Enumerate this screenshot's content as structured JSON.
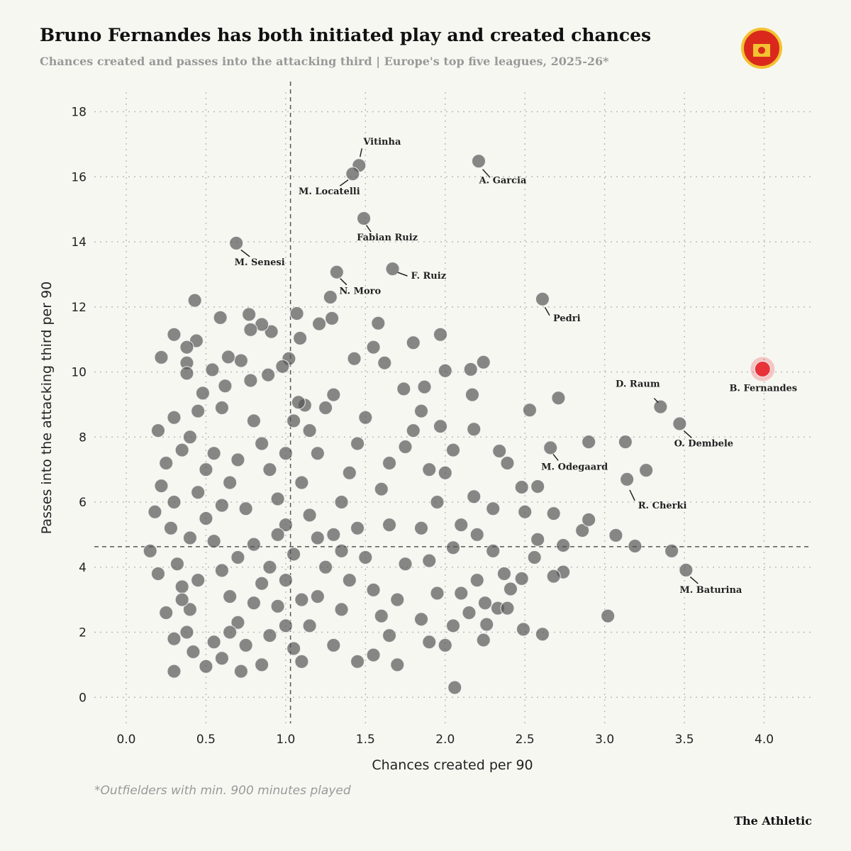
{
  "title": "Bruno Fernandes has both initiated play and created chances",
  "subtitle": "Chances created and passes into the attacking third | Europe's top five leagues, 2025-26*",
  "footnote": "*Outfielders with min. 900 minutes played",
  "brand": "The Athletic",
  "chart_data": {
    "type": "scatter",
    "x_label": "Chances created per 90",
    "y_label": "Passes into the attacking third per 90",
    "xlim": [
      -0.2,
      4.3
    ],
    "ylim": [
      -0.8,
      18.6
    ],
    "xticks": [
      {
        "value": 0,
        "label": "0.0"
      },
      0.5,
      {
        "value": 1,
        "label": "1.0"
      },
      1.5,
      {
        "value": 2,
        "label": "2.0"
      },
      2.5,
      {
        "value": 3,
        "label": "3.0"
      },
      3.5,
      {
        "value": 4,
        "label": "4.0"
      }
    ],
    "yticks": [
      0,
      2,
      4,
      6,
      8,
      10,
      12,
      14,
      16,
      18
    ],
    "grid": true,
    "color": "#555555",
    "ref_x": 1.03,
    "ref_y": 4.63,
    "points": [
      [
        3.02,
        2.5
      ],
      [
        2.06,
        0.3
      ],
      [
        0.3,
        0.8
      ],
      [
        0.43,
        12.2
      ],
      [
        2.24,
        10.3
      ],
      [
        1.97,
        11.15
      ],
      [
        1.8,
        10.9
      ],
      [
        1.58,
        11.5
      ],
      [
        1.07,
        11.8
      ],
      [
        0.77,
        11.77
      ],
      [
        0.59,
        11.67
      ],
      [
        0.3,
        11.15
      ],
      [
        0.22,
        10.45
      ],
      [
        2.16,
        10.08
      ],
      [
        2.0,
        10.04
      ],
      [
        2.71,
        9.2
      ],
      [
        2.53,
        8.83
      ],
      [
        2.9,
        7.85
      ],
      [
        3.13,
        7.85
      ],
      [
        3.26,
        6.98
      ],
      [
        2.34,
        7.57
      ],
      [
        2.39,
        7.2
      ],
      [
        2.58,
        6.48
      ],
      [
        2.48,
        6.46
      ],
      [
        2.68,
        5.65
      ],
      [
        2.5,
        5.7
      ],
      [
        2.58,
        4.85
      ],
      [
        3.07,
        4.98
      ],
      [
        3.19,
        4.65
      ],
      [
        3.42,
        4.5
      ],
      [
        2.74,
        4.67
      ],
      [
        2.86,
        5.13
      ],
      [
        2.9,
        5.46
      ],
      [
        2.74,
        3.85
      ],
      [
        2.68,
        3.72
      ],
      [
        2.56,
        4.3
      ],
      [
        2.48,
        3.65
      ],
      [
        2.37,
        3.8
      ],
      [
        2.41,
        3.33
      ],
      [
        2.33,
        2.74
      ],
      [
        2.39,
        2.74
      ],
      [
        2.49,
        2.09
      ],
      [
        2.61,
        1.94
      ],
      [
        2.24,
        1.76
      ],
      [
        2.26,
        2.24
      ],
      [
        2.3,
        5.8
      ],
      [
        2.18,
        6.17
      ],
      [
        2.17,
        9.3
      ],
      [
        2.18,
        8.24
      ],
      [
        1.97,
        8.33
      ],
      [
        1.87,
        9.54
      ],
      [
        1.74,
        9.48
      ],
      [
        1.62,
        10.28
      ],
      [
        1.55,
        10.76
      ],
      [
        1.43,
        10.41
      ],
      [
        1.28,
        12.3
      ],
      [
        1.29,
        11.65
      ],
      [
        1.21,
        11.48
      ],
      [
        1.09,
        11.04
      ],
      [
        1.02,
        10.41
      ],
      [
        0.91,
        11.24
      ],
      [
        0.85,
        11.46
      ],
      [
        0.78,
        11.3
      ],
      [
        0.72,
        10.35
      ],
      [
        0.64,
        10.46
      ],
      [
        0.54,
        10.07
      ],
      [
        0.44,
        10.96
      ],
      [
        0.38,
        10.76
      ],
      [
        0.38,
        10.28
      ],
      [
        0.38,
        9.96
      ],
      [
        0.48,
        9.35
      ],
      [
        0.62,
        9.57
      ],
      [
        0.78,
        9.74
      ],
      [
        0.89,
        9.91
      ],
      [
        0.98,
        10.17
      ],
      [
        1.12,
        8.98
      ],
      [
        1.08,
        9.07
      ],
      [
        0.15,
        4.5
      ],
      [
        0.2,
        3.8
      ],
      [
        0.18,
        5.7
      ],
      [
        0.22,
        6.5
      ],
      [
        0.25,
        7.2
      ],
      [
        0.2,
        8.2
      ],
      [
        0.3,
        8.6
      ],
      [
        0.35,
        7.6
      ],
      [
        0.28,
        5.2
      ],
      [
        0.32,
        4.1
      ],
      [
        0.35,
        3.4
      ],
      [
        0.4,
        2.7
      ],
      [
        0.38,
        2.0
      ],
      [
        0.42,
        1.4
      ],
      [
        0.5,
        0.95
      ],
      [
        0.55,
        1.7
      ],
      [
        0.45,
        6.3
      ],
      [
        0.5,
        5.5
      ],
      [
        0.55,
        4.8
      ],
      [
        0.6,
        3.9
      ],
      [
        0.65,
        3.1
      ],
      [
        0.7,
        2.3
      ],
      [
        0.75,
        1.6
      ],
      [
        0.72,
        0.8
      ],
      [
        0.85,
        1.0
      ],
      [
        0.9,
        1.9
      ],
      [
        0.95,
        2.8
      ],
      [
        1.0,
        3.6
      ],
      [
        1.05,
        4.4
      ],
      [
        1.0,
        5.3
      ],
      [
        0.95,
        6.1
      ],
      [
        0.9,
        7.0
      ],
      [
        0.85,
        7.8
      ],
      [
        0.8,
        8.5
      ],
      [
        0.6,
        8.9
      ],
      [
        0.55,
        7.5
      ],
      [
        0.65,
        6.6
      ],
      [
        0.75,
        5.8
      ],
      [
        0.8,
        4.7
      ],
      [
        0.85,
        3.5
      ],
      [
        1.1,
        1.1
      ],
      [
        1.15,
        2.2
      ],
      [
        1.2,
        3.1
      ],
      [
        1.25,
        4.0
      ],
      [
        1.3,
        5.0
      ],
      [
        1.35,
        6.0
      ],
      [
        1.4,
        6.9
      ],
      [
        1.45,
        7.8
      ],
      [
        1.5,
        8.6
      ],
      [
        1.2,
        7.5
      ],
      [
        1.1,
        6.6
      ],
      [
        1.15,
        5.6
      ],
      [
        1.25,
        8.9
      ],
      [
        1.3,
        9.3
      ],
      [
        1.15,
        8.2
      ],
      [
        1.45,
        5.2
      ],
      [
        1.5,
        4.3
      ],
      [
        1.55,
        3.3
      ],
      [
        1.6,
        2.5
      ],
      [
        1.55,
        1.3
      ],
      [
        1.45,
        1.1
      ],
      [
        1.7,
        1.0
      ],
      [
        1.65,
        1.9
      ],
      [
        1.7,
        3.0
      ],
      [
        1.75,
        4.1
      ],
      [
        1.65,
        5.3
      ],
      [
        1.6,
        6.4
      ],
      [
        1.65,
        7.2
      ],
      [
        1.75,
        7.7
      ],
      [
        1.8,
        8.2
      ],
      [
        1.85,
        8.8
      ],
      [
        1.9,
        7.0
      ],
      [
        1.95,
        6.0
      ],
      [
        1.85,
        5.2
      ],
      [
        1.9,
        4.2
      ],
      [
        1.95,
        3.2
      ],
      [
        1.85,
        2.4
      ],
      [
        1.9,
        1.7
      ],
      [
        2.0,
        1.6
      ],
      [
        2.05,
        2.2
      ],
      [
        2.1,
        3.2
      ],
      [
        2.15,
        2.6
      ],
      [
        2.2,
        3.6
      ],
      [
        2.05,
        4.6
      ],
      [
        2.1,
        5.3
      ],
      [
        2.0,
        6.9
      ],
      [
        2.05,
        7.6
      ],
      [
        2.25,
        2.9
      ],
      [
        2.3,
        4.5
      ],
      [
        2.2,
        5.0
      ],
      [
        0.3,
        6.0
      ],
      [
        0.4,
        4.9
      ],
      [
        0.45,
        3.6
      ],
      [
        0.25,
        2.6
      ],
      [
        0.3,
        1.8
      ],
      [
        0.6,
        1.2
      ],
      [
        0.65,
        2.0
      ],
      [
        0.8,
        2.9
      ],
      [
        0.7,
        4.3
      ],
      [
        0.9,
        4.0
      ],
      [
        1.0,
        2.2
      ],
      [
        1.05,
        1.5
      ],
      [
        1.1,
        3.0
      ],
      [
        1.35,
        2.7
      ],
      [
        1.3,
        1.6
      ],
      [
        1.4,
        3.6
      ],
      [
        1.35,
        4.5
      ],
      [
        1.2,
        4.9
      ],
      [
        0.95,
        5.0
      ],
      [
        0.6,
        5.9
      ],
      [
        0.5,
        7.0
      ],
      [
        0.4,
        8.0
      ],
      [
        0.45,
        8.8
      ],
      [
        0.7,
        7.3
      ],
      [
        1.0,
        7.5
      ],
      [
        1.05,
        8.5
      ],
      [
        0.35,
        3.0
      ]
    ],
    "annotations": [
      {
        "text": "Vitinha",
        "x": 1.46,
        "y": 16.35
      },
      {
        "text": "M. Locatelli",
        "x": 1.42,
        "y": 16.09
      },
      {
        "text": "A. Garcia",
        "x": 2.21,
        "y": 16.48
      },
      {
        "text": "Fabian Ruiz",
        "x": 1.49,
        "y": 14.72
      },
      {
        "text": "M. Senesi",
        "x": 0.69,
        "y": 13.96
      },
      {
        "text": "N. Moro",
        "x": 1.32,
        "y": 13.07
      },
      {
        "text": "F. Ruiz",
        "x": 1.67,
        "y": 13.17
      },
      {
        "text": "Pedri",
        "x": 2.61,
        "y": 12.24
      },
      {
        "text": "B. Fernandes",
        "x": 3.99,
        "y": 10.09,
        "color": "#e8333a"
      },
      {
        "text": "D. Raum",
        "x": 3.35,
        "y": 8.93
      },
      {
        "text": "O. Dembele",
        "x": 3.47,
        "y": 8.41
      },
      {
        "text": "M. Odegaard",
        "x": 2.66,
        "y": 7.67
      },
      {
        "text": "R. Cherki",
        "x": 3.14,
        "y": 6.7
      },
      {
        "text": "M. Baturina",
        "x": 3.51,
        "y": 3.91
      }
    ]
  }
}
